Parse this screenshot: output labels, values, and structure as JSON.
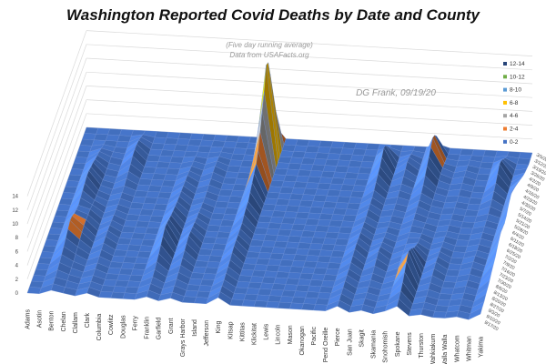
{
  "chart_data": {
    "type": "surface",
    "title": "Washington Reported Covid Deaths by Date and County",
    "subtitle_lines": [
      "(Five day running average)",
      "Data from USAFacts.org"
    ],
    "credit": "DG Frank, 09/19/20",
    "zlim": [
      0,
      14
    ],
    "z_ticks": [
      "0",
      "2",
      "4",
      "6",
      "8",
      "10",
      "12",
      "14"
    ],
    "grid": true,
    "legend_position": "right",
    "bands": [
      {
        "label": "12-14",
        "color": "#264478"
      },
      {
        "label": "10-12",
        "color": "#70AD47"
      },
      {
        "label": "8-10",
        "color": "#5B9BD5"
      },
      {
        "label": "6-8",
        "color": "#FFC000"
      },
      {
        "label": "4-6",
        "color": "#A5A5A5"
      },
      {
        "label": "2-4",
        "color": "#ED7D31"
      },
      {
        "label": "0-2",
        "color": "#4472C4"
      }
    ],
    "counties": [
      "Adams",
      "Asotin",
      "Benton",
      "Chelan",
      "Clallam",
      "Clark",
      "Columbia",
      "Cowlitz",
      "Douglas",
      "Ferry",
      "Franklin",
      "Garfield",
      "Grant",
      "Grays Harbor",
      "Island",
      "Jefferson",
      "King",
      "Kitsap",
      "Kittitas",
      "Klickitat",
      "Lewis",
      "Lincoln",
      "Mason",
      "Okanogan",
      "Pacific",
      "Pend Oreille",
      "Pierce",
      "San Juan",
      "Skagit",
      "Skamania",
      "Snohomish",
      "Spokane",
      "Stevens",
      "Thurston",
      "Wahkiakum",
      "Walla Walla",
      "Whatcom",
      "Whitman",
      "Yakima"
    ],
    "dates": [
      "3/5/20",
      "3/12/20",
      "3/19/20",
      "3/26/20",
      "4/2/20",
      "4/9/20",
      "4/16/20",
      "4/23/20",
      "4/30/20",
      "5/7/20",
      "5/14/20",
      "5/21/20",
      "5/28/20",
      "6/4/20",
      "6/11/20",
      "6/18/20",
      "6/25/20",
      "7/2/20",
      "7/9/20",
      "7/16/20",
      "7/23/20",
      "7/30/20",
      "8/6/20",
      "8/13/20",
      "8/20/20",
      "8/27/20",
      "9/3/20",
      "9/10/20",
      "9/17/20"
    ],
    "series": [
      {
        "county": "King",
        "values": [
          2,
          7,
          11,
          13.5,
          14,
          11,
          9,
          7,
          5,
          4,
          3.5,
          3,
          2.5,
          2,
          2,
          1.8,
          1.5,
          1.5,
          1.5,
          1.6,
          1.6,
          1.5,
          1.3,
          1.2,
          1.1,
          1,
          1,
          1,
          1
        ]
      },
      {
        "county": "Snohomish",
        "values": [
          0.5,
          2.5,
          3.5,
          4,
          3.5,
          3,
          2.5,
          2,
          1.5,
          1.2,
          1,
          1,
          0.9,
          0.8,
          0.8,
          0.7,
          0.7,
          0.7,
          0.7,
          0.8,
          0.8,
          0.7,
          0.6,
          0.6,
          0.6,
          0.5,
          0.5,
          0.5,
          0.5
        ]
      },
      {
        "county": "Pierce",
        "values": [
          0,
          0.5,
          1.5,
          2.5,
          3,
          2.5,
          2,
          1.8,
          1.5,
          1.2,
          1,
          1,
          1,
          0.9,
          0.9,
          1,
          1.1,
          1.2,
          1.3,
          1.3,
          1.2,
          1.1,
          1,
          1,
          1,
          0.9,
          0.9,
          0.8,
          0.8
        ]
      },
      {
        "county": "Yakima",
        "values": [
          0,
          0,
          0,
          0.3,
          0.6,
          1,
          1.5,
          2,
          2.5,
          3,
          3.5,
          4,
          3.8,
          3.5,
          3,
          2.8,
          3,
          3.2,
          3,
          2.6,
          2.2,
          2,
          1.8,
          1.5,
          1.3,
          1.2,
          1,
          1,
          0.9
        ]
      },
      {
        "county": "Spokane",
        "values": [
          0,
          0,
          0.2,
          0.4,
          0.6,
          0.6,
          0.5,
          0.4,
          0.4,
          0.3,
          0.3,
          0.3,
          0.3,
          0.4,
          0.5,
          0.6,
          0.8,
          1,
          1.5,
          2,
          2.8,
          3.5,
          4,
          3.5,
          2.8,
          2.2,
          1.8,
          1.5,
          1.3
        ]
      },
      {
        "county": "Benton",
        "values": [
          0,
          0,
          0,
          0.3,
          0.6,
          1,
          1.3,
          1.6,
          2,
          2.2,
          2.5,
          2.6,
          2.4,
          2.2,
          2,
          1.8,
          2,
          2.3,
          2.8,
          3,
          2.6,
          2.2,
          1.8,
          1.5,
          1.2,
          1,
          0.8,
          0.7,
          0.6
        ]
      },
      {
        "county": "Franklin",
        "values": [
          0,
          0,
          0,
          0,
          0.2,
          0.4,
          0.5,
          0.7,
          0.9,
          1,
          1.1,
          1.2,
          1.3,
          1.4,
          1.6,
          1.8,
          2,
          2.3,
          2.6,
          2.8,
          2.4,
          2,
          1.6,
          1.3,
          1,
          0.8,
          0.7,
          0.6,
          0.5
        ]
      },
      {
        "county": "Clark",
        "values": [
          0,
          0.3,
          0.8,
          1.2,
          1.5,
          1.6,
          1.5,
          1.2,
          1,
          0.8,
          0.6,
          0.5,
          0.5,
          0.5,
          0.6,
          0.7,
          0.8,
          0.9,
          1,
          1,
          0.9,
          0.8,
          0.7,
          0.6,
          0.6,
          0.5,
          0.5,
          0.5,
          0.5
        ]
      },
      {
        "county": "Skagit",
        "values": [
          0,
          0.2,
          0.6,
          1,
          1.2,
          1,
          0.8,
          0.6,
          0.5,
          0.4,
          0.3,
          0.3,
          0.3,
          0.3,
          0.4,
          0.5,
          0.6,
          0.8,
          1,
          1.2,
          1,
          0.8,
          0.6,
          0.5,
          0.4,
          0.4,
          0.4,
          0.4,
          0.4
        ]
      },
      {
        "county": "Whatcom",
        "values": [
          0,
          0.2,
          0.8,
          1.5,
          2.2,
          2.5,
          2,
          1.5,
          1.2,
          0.9,
          0.7,
          0.5,
          0.4,
          0.4,
          0.4,
          0.4,
          0.4,
          0.4,
          0.5,
          0.5,
          0.5,
          0.4,
          0.4,
          0.4,
          0.3,
          0.3,
          0.3,
          0.3,
          0.3
        ]
      },
      {
        "county": "Grant",
        "values": [
          0,
          0,
          0,
          0.2,
          0.4,
          0.6,
          0.7,
          0.7,
          0.6,
          0.6,
          0.5,
          0.5,
          0.6,
          0.7,
          0.9,
          1,
          1.2,
          1.4,
          1.6,
          1.8,
          1.6,
          1.4,
          1.2,
          1,
          0.8,
          0.7,
          0.6,
          0.5,
          0.5
        ]
      },
      {
        "county": "Chelan",
        "values": [
          0,
          0,
          0,
          0,
          0.2,
          0.3,
          0.3,
          0.3,
          0.3,
          0.4,
          0.5,
          0.6,
          0.7,
          0.9,
          1.1,
          1.3,
          1.4,
          1.5,
          1.5,
          1.4,
          1.2,
          1,
          0.8,
          0.6,
          0.5,
          0.4,
          0.4,
          0.3,
          0.3
        ]
      },
      {
        "county": "Thurston",
        "values": [
          0,
          0,
          0.2,
          0.3,
          0.4,
          0.4,
          0.3,
          0.3,
          0.2,
          0.2,
          0.2,
          0.2,
          0.2,
          0.3,
          0.3,
          0.4,
          0.5,
          0.6,
          0.8,
          0.9,
          1,
          0.9,
          0.8,
          0.6,
          0.5,
          0.4,
          0.4,
          0.3,
          0.3
        ]
      }
    ]
  }
}
